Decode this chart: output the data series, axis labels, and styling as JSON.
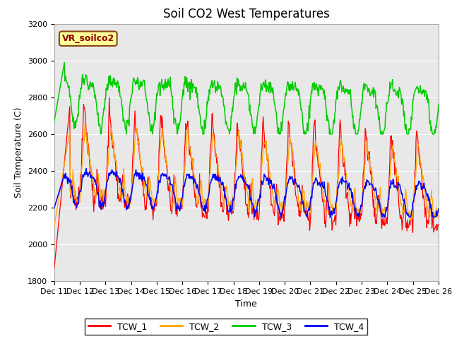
{
  "title": "Soil CO2 West Temperatures",
  "ylabel": "Soil Temperature (C)",
  "xlabel": "Time",
  "ylim": [
    1800,
    3200
  ],
  "xlim": [
    0,
    15
  ],
  "yticks": [
    1800,
    2000,
    2200,
    2400,
    2600,
    2800,
    3000,
    3200
  ],
  "xtick_labels": [
    "Dec 11",
    "Dec 12",
    "Dec 13",
    "Dec 14",
    "Dec 15",
    "Dec 16",
    "Dec 17",
    "Dec 18",
    "Dec 19",
    "Dec 20",
    "Dec 21",
    "Dec 22",
    "Dec 23",
    "Dec 24",
    "Dec 25",
    "Dec 26"
  ],
  "colors": {
    "TCW_1": "#ff0000",
    "TCW_2": "#ffa500",
    "TCW_3": "#00cc00",
    "TCW_4": "#0000ff"
  },
  "fig_bg": "#ffffff",
  "plot_bg": "#e8e8e8",
  "grid_color": "#ffffff",
  "vr_label": "VR_soilco2",
  "vr_label_color": "#8b0000",
  "vr_box_facecolor": "#ffff99",
  "vr_box_edgecolor": "#8b4513",
  "legend_labels": [
    "TCW_1",
    "TCW_2",
    "TCW_3",
    "TCW_4"
  ],
  "title_fontsize": 12,
  "axis_fontsize": 9,
  "tick_fontsize": 8
}
